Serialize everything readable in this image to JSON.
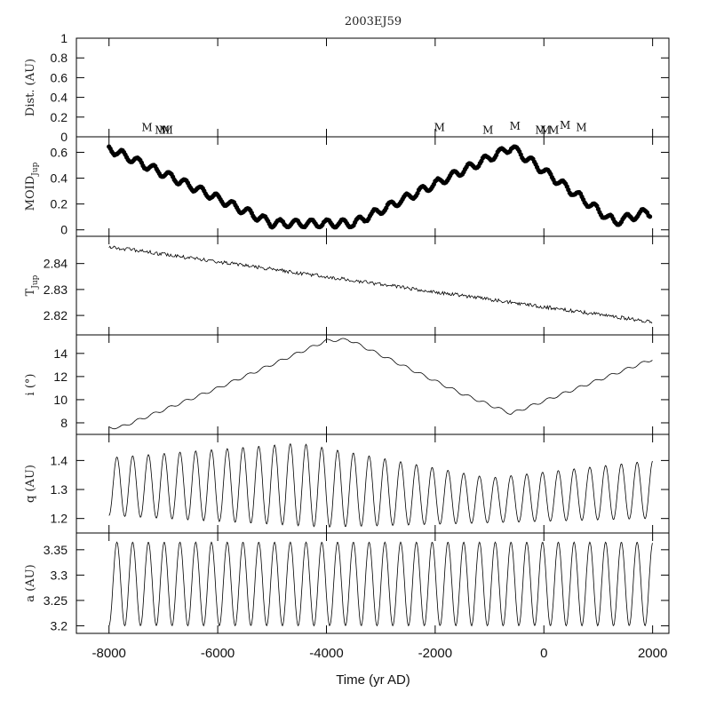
{
  "figure": {
    "title": "2003EJ59",
    "xlabel": "Time (yr AD)",
    "x_ticks": [
      -8000,
      -6000,
      -4000,
      -2000,
      0,
      2000
    ]
  },
  "chart_data": [
    {
      "id": "dist",
      "type": "scatter",
      "title": "2003EJ59",
      "ylabel": "Dist. (AU)",
      "xlim": [
        -8600,
        2300
      ],
      "ylim": [
        0,
        1
      ],
      "y_ticks": [
        0,
        0.2,
        0.4,
        0.6,
        0.8,
        1
      ],
      "y_tick_labels": [
        "0",
        "0.2",
        "0.4",
        "0.6",
        "0.8",
        "1"
      ],
      "markers": {
        "label": "M",
        "x": [
          -7300,
          -7060,
          -6980,
          -6920,
          -1920,
          -1030,
          -530,
          -60,
          30,
          180,
          390,
          690
        ],
        "y": [
          0.06,
          0.03,
          0.03,
          0.03,
          0.06,
          0.03,
          0.07,
          0.03,
          0.03,
          0.03,
          0.08,
          0.06
        ]
      }
    },
    {
      "id": "moid",
      "type": "scatter",
      "ylabel": "MOIDJup",
      "ylabel_main": "MOID",
      "ylabel_sub": "Jup",
      "xlim": [
        -8600,
        2300
      ],
      "ylim": [
        -0.05,
        0.72
      ],
      "y_ticks": [
        0,
        0.2,
        0.4,
        0.6
      ],
      "y_tick_labels": [
        "0",
        "0.2",
        "0.4",
        "0.6"
      ],
      "model": {
        "x_start": -8000,
        "x_end": 1950,
        "step": 25,
        "profile_x": [
          -8000,
          -5000,
          -3500,
          -600,
          1300,
          1900,
          1950
        ],
        "profile_y": [
          0.63,
          0.05,
          0.05,
          0.64,
          0.06,
          0.14,
          0.13
        ],
        "oscillation_amplitude": 0.03,
        "oscillation_period_yr": 290
      }
    },
    {
      "id": "tjup",
      "type": "line",
      "ylabel": "TJup",
      "ylabel_main": "T",
      "ylabel_sub": "Jup",
      "xlim": [
        -8600,
        2300
      ],
      "ylim": [
        2.8125,
        2.8505
      ],
      "y_ticks": [
        2.82,
        2.83,
        2.84
      ],
      "y_tick_labels": [
        "2.82",
        "2.83",
        "2.84"
      ],
      "model": {
        "x_start": -8000,
        "x_end": 2000,
        "step": 18,
        "profile_x": [
          -8000,
          2000
        ],
        "profile_y": [
          2.8465,
          2.8175
        ],
        "noise_amplitude": 0.0007
      }
    },
    {
      "id": "incl",
      "type": "line",
      "ylabel": "i (°)",
      "xlim": [
        -8600,
        2300
      ],
      "ylim": [
        7.0,
        15.6
      ],
      "y_ticks": [
        8,
        10,
        12,
        14
      ],
      "y_tick_labels": [
        "8",
        "10",
        "12",
        "14"
      ],
      "model": {
        "x_start": -8000,
        "x_end": 2000,
        "step": 12,
        "profile_x": [
          -8000,
          -7800,
          -6000,
          -4000,
          -3600,
          -1500,
          -600,
          2000
        ],
        "profile_y": [
          7.6,
          7.6,
          11.0,
          15.1,
          15.2,
          10.5,
          8.8,
          13.5
        ],
        "oscillation_amplitude": 0.12,
        "oscillation_period_yr": 290
      }
    },
    {
      "id": "q",
      "type": "line",
      "ylabel": "q (AU)",
      "xlim": [
        -8600,
        2300
      ],
      "ylim": [
        1.15,
        1.49
      ],
      "y_ticks": [
        1.2,
        1.3,
        1.4
      ],
      "y_tick_labels": [
        "1.2",
        "1.3",
        "1.4"
      ],
      "model": {
        "x_start": -8000,
        "x_end": 2000,
        "step": 12,
        "period_yr": 290,
        "min_profile_x": [
          -8000,
          -4000,
          2000
        ],
        "min_profile_y": [
          1.21,
          1.17,
          1.2
        ],
        "max_profile_x": [
          -8000,
          -4500,
          -1000,
          2000
        ],
        "max_profile_y": [
          1.41,
          1.46,
          1.34,
          1.4
        ]
      }
    },
    {
      "id": "a",
      "type": "line",
      "ylabel": "a (AU)",
      "xlim": [
        -8600,
        2300
      ],
      "ylim": [
        3.185,
        3.383
      ],
      "y_ticks": [
        3.2,
        3.25,
        3.3,
        3.35
      ],
      "y_tick_labels": [
        "3.2",
        "3.25",
        "3.3",
        "3.35"
      ],
      "model": {
        "x_start": -8000,
        "x_end": 2000,
        "step": 12,
        "period_yr": 290,
        "min_value": 3.2,
        "max_value": 3.365
      }
    }
  ]
}
